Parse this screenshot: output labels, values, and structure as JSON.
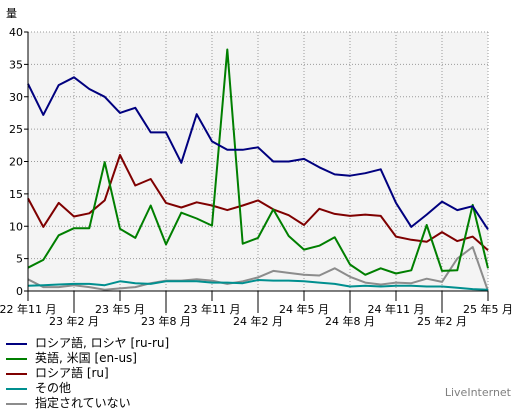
{
  "chart_data": {
    "type": "line",
    "ylabel": "量",
    "ylim": [
      0,
      40
    ],
    "yticks": [
      0,
      5,
      10,
      15,
      20,
      25,
      30,
      35,
      40
    ],
    "grid": true,
    "legend_position": "bottom-left",
    "x_tick_labels": [
      {
        "index": 0,
        "label": "22 年11 月",
        "row": 1
      },
      {
        "index": 3,
        "label": "23 年2 月",
        "row": 2
      },
      {
        "index": 6,
        "label": "23 年5 月",
        "row": 1
      },
      {
        "index": 9,
        "label": "23 年8 月",
        "row": 2
      },
      {
        "index": 12,
        "label": "23 年11 月",
        "row": 1
      },
      {
        "index": 15,
        "label": "24 年2 月",
        "row": 2
      },
      {
        "index": 18,
        "label": "24 年5 月",
        "row": 1
      },
      {
        "index": 21,
        "label": "24 年8 月",
        "row": 2
      },
      {
        "index": 24,
        "label": "24 年11 月",
        "row": 1
      },
      {
        "index": 27,
        "label": "25 年2 月",
        "row": 2
      },
      {
        "index": 30,
        "label": "25 年5 月",
        "row": 1
      }
    ],
    "series": [
      {
        "name": "ロシア語, ロシヤ [ru-ru]",
        "color": "#00007f",
        "values": [
          32,
          27.2,
          31.8,
          33,
          31.2,
          30,
          27.5,
          28.3,
          24.5,
          24.5,
          19.8,
          27.3,
          23.1,
          21.8,
          21.8,
          22.2,
          20,
          20,
          20.4,
          19.1,
          18,
          17.8,
          18.2,
          18.8,
          13.6,
          9.9,
          11.8,
          13.8,
          12.5,
          13.1,
          9.5
        ]
      },
      {
        "name": "英語, 米国 [en-us]",
        "color": "#007f00",
        "values": [
          3.6,
          4.8,
          8.6,
          9.7,
          9.7,
          19.9,
          9.6,
          8.2,
          13.2,
          7.2,
          12.1,
          11.2,
          10.1,
          37.3,
          7.3,
          8.2,
          12.6,
          8.5,
          6.4,
          7,
          8.3,
          4.1,
          2.5,
          3.5,
          2.7,
          3.2,
          10.2,
          3.1,
          3.2,
          13.3,
          3.5
        ]
      },
      {
        "name": "ロシア語 [ru]",
        "color": "#7f0000",
        "values": [
          14.3,
          9.9,
          13.6,
          11.5,
          12,
          14,
          21,
          16.3,
          17.3,
          13.6,
          12.9,
          13.7,
          13.2,
          12.5,
          13.2,
          14,
          12.6,
          11.7,
          10.2,
          12.7,
          11.9,
          11.6,
          11.8,
          11.6,
          8.4,
          7.9,
          7.6,
          9.1,
          7.7,
          8.4,
          6.3
        ]
      },
      {
        "name": "その他",
        "color": "#008f8f",
        "values": [
          0.8,
          0.9,
          1,
          1.1,
          1.1,
          0.9,
          1.5,
          1.2,
          1.1,
          1.5,
          1.5,
          1.5,
          1.3,
          1.3,
          1.2,
          1.7,
          1.6,
          1.6,
          1.5,
          1.3,
          1.1,
          0.7,
          0.8,
          0.7,
          0.8,
          0.8,
          0.7,
          0.7,
          0.5,
          0.3,
          0.2
        ]
      },
      {
        "name": "指定されていない",
        "color": "#8c8c8c",
        "values": [
          1.8,
          0.6,
          0.6,
          0.9,
          0.6,
          0.2,
          0.4,
          0.6,
          1.2,
          1.6,
          1.6,
          1.8,
          1.6,
          1.1,
          1.5,
          2.1,
          3.1,
          2.8,
          2.5,
          2.4,
          3.5,
          2.2,
          1.3,
          1,
          1.3,
          1.2,
          1.9,
          1.4,
          5,
          6.8,
          0
        ]
      }
    ]
  },
  "branding": "LiveInternet"
}
